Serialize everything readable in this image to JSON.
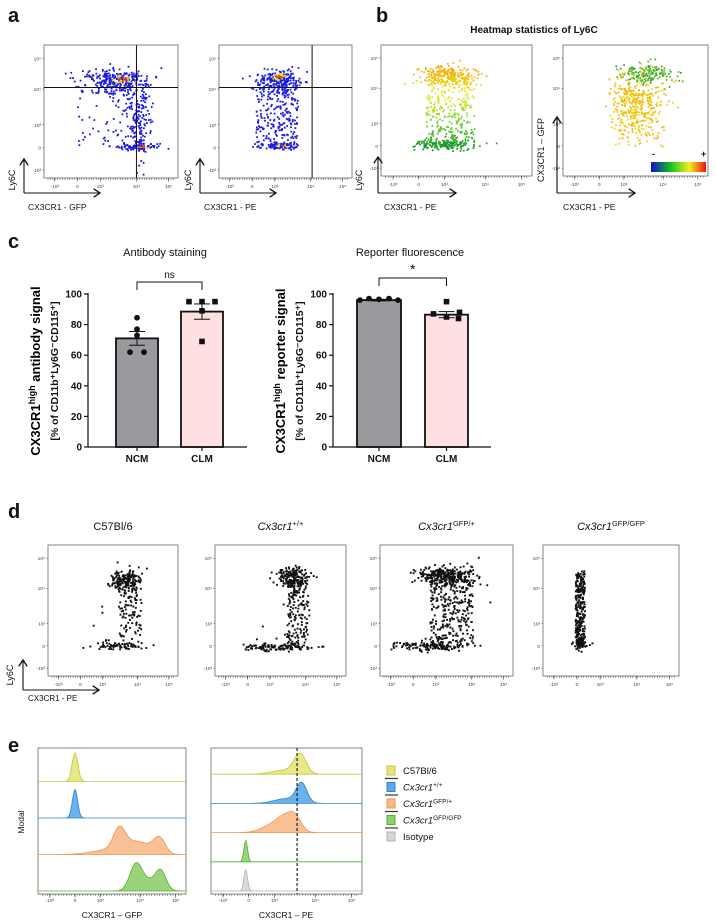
{
  "panels": {
    "a": "a",
    "b": "b",
    "c": "c",
    "d": "d",
    "e": "e"
  },
  "flow_ticks": {
    "x": [
      "-10³",
      "0",
      "10³",
      "10⁴",
      "10⁵"
    ],
    "y": [
      "10⁵",
      "10⁴",
      "10³",
      "0",
      "-10³"
    ]
  },
  "panel_a": {
    "ylabel": "Ly6C",
    "xlabel_left": "CX3CR1 - GFP",
    "xlabel_right": "CX3CR1 - PE",
    "dot_colors": {
      "low": "#1a1ae0",
      "mid": "#e4e42a",
      "high": "#e8400f"
    }
  },
  "panel_b": {
    "title": "Heatmap statistics of Ly6C",
    "left": {
      "ylabel": "Ly6C",
      "xlabel": "CX3CR1 - PE"
    },
    "right": {
      "ylabel": "CX3CR1 – GFP",
      "xlabel": "CX3CR1 - PE"
    },
    "scale_min": "-",
    "scale_max": "+",
    "scale_colors": [
      "#1010d0",
      "#10c020",
      "#f0f020",
      "#f01010"
    ]
  },
  "chart_data": [
    {
      "type": "bar",
      "title": "Antibody staining",
      "ylabel": {
        "prefix": "CX3CR1",
        "sup": "high",
        "suffix": " antibody signal"
      },
      "ylabel2": "[% of CD11b⁺Ly6G⁻CD115⁺]",
      "categories": [
        "NCM",
        "CLM"
      ],
      "values": [
        71,
        88.5
      ],
      "errors": [
        4.5,
        5
      ],
      "points": [
        [
          84.5,
          77,
          73,
          62,
          62
        ],
        [
          95,
          95,
          95,
          89,
          69
        ]
      ],
      "bar_colors": [
        "#9a9a9e",
        "#fde0df"
      ],
      "ylim": [
        0,
        100
      ],
      "yticks": [
        0,
        20,
        40,
        60,
        80,
        100
      ],
      "significance": "ns"
    },
    {
      "type": "bar",
      "title": "Reporter fluorescence",
      "ylabel": {
        "prefix": "CX3CR1",
        "sup": "high",
        "suffix": " reporter signal"
      },
      "ylabel2": "[% of CD11b⁺Ly6G⁻CD115⁺]",
      "categories": [
        "NCM",
        "CLM"
      ],
      "values": [
        96,
        86.5
      ],
      "errors": [
        0.5,
        2
      ],
      "points": [
        [
          96,
          97,
          96.5,
          97,
          96
        ],
        [
          95,
          87,
          88,
          85,
          84
        ]
      ],
      "bar_colors": [
        "#9a9a9e",
        "#fde0df"
      ],
      "ylim": [
        0,
        100
      ],
      "yticks": [
        0,
        20,
        40,
        60,
        80,
        100
      ],
      "significance": "*"
    }
  ],
  "panel_d": {
    "titles": [
      {
        "name": "C57Bl/6",
        "italic": false,
        "sup": ""
      },
      {
        "name": "Cx3cr1",
        "italic": true,
        "sup": "+/+"
      },
      {
        "name": "Cx3cr1",
        "italic": true,
        "sup": "GFP/+"
      },
      {
        "name": "Cx3cr1",
        "italic": true,
        "sup": "GFP/GFP"
      }
    ],
    "ylabel": "Ly6C",
    "xlabel": "CX3CR1 - PE"
  },
  "panel_e": {
    "ylabel": "Modal",
    "xlabel_left": "CX3CR1 – GFP",
    "xlabel_right": "CX3CR1 – PE",
    "legend": [
      {
        "name": "C57Bl/6",
        "italic": false,
        "sup": "",
        "fill": "#e6e67c",
        "stroke": "#c6c63a"
      },
      {
        "name": "Cx3cr1",
        "italic": true,
        "sup": "+/+",
        "fill": "#5aa9ec",
        "stroke": "#2c84d4"
      },
      {
        "name": "Cx3cr1",
        "italic": true,
        "sup": "GFP/+",
        "fill": "#f8b98a",
        "stroke": "#ee9656"
      },
      {
        "name": "Cx3cr1",
        "italic": true,
        "sup": "GFP/GFP",
        "fill": "#8fcf6c",
        "stroke": "#55ad36"
      },
      {
        "name": "Isotype",
        "italic": false,
        "sup": "",
        "fill": "#d6d6d6",
        "stroke": "#b0b0b0"
      }
    ]
  }
}
